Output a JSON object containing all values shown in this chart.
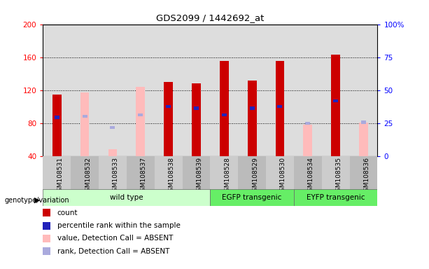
{
  "title": "GDS2099 / 1442692_at",
  "samples": [
    "GSM108531",
    "GSM108532",
    "GSM108533",
    "GSM108537",
    "GSM108538",
    "GSM108539",
    "GSM108528",
    "GSM108529",
    "GSM108530",
    "GSM108534",
    "GSM108535",
    "GSM108536"
  ],
  "group_configs": [
    {
      "label": "wild type",
      "color": "#ccffcc",
      "start": 0,
      "end": 6
    },
    {
      "label": "EGFP transgenic",
      "color": "#66ee66",
      "start": 6,
      "end": 9
    },
    {
      "label": "EYFP transgenic",
      "color": "#66ee66",
      "start": 9,
      "end": 12
    }
  ],
  "count": [
    115,
    null,
    null,
    null,
    130,
    128,
    155,
    132,
    155,
    null,
    163,
    null
  ],
  "count_absent": [
    null,
    117,
    48,
    124,
    null,
    null,
    null,
    null,
    null,
    78,
    null,
    81
  ],
  "rank_present": [
    87,
    null,
    null,
    null,
    100,
    98,
    90,
    98,
    100,
    null,
    107,
    null
  ],
  "rank_absent": [
    null,
    88,
    75,
    90,
    null,
    null,
    null,
    null,
    null,
    80,
    null,
    81
  ],
  "ylim": [
    40,
    200
  ],
  "y2lim": [
    0,
    100
  ],
  "yticks": [
    40,
    80,
    120,
    160,
    200
  ],
  "y2ticks": [
    0,
    25,
    50,
    75,
    100
  ],
  "bar_color_red": "#cc0000",
  "bar_color_pink": "#ffbbbb",
  "bar_color_blue": "#2222bb",
  "bar_color_lblue": "#aaaadd",
  "plot_bg": "#dddddd",
  "grid_ticks": [
    80,
    120,
    160
  ]
}
